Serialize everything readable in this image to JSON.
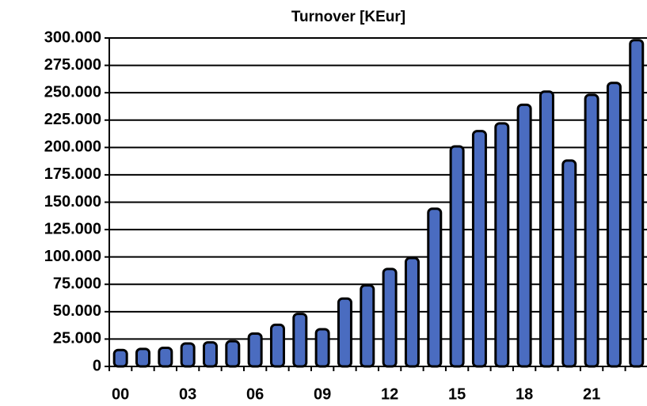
{
  "chart_data": {
    "type": "bar",
    "title": "Turnover [KEur]",
    "categories": [
      "00",
      null,
      null,
      "03",
      null,
      null,
      "06",
      null,
      null,
      "09",
      null,
      null,
      "12",
      null,
      null,
      "15",
      null,
      null,
      "18",
      null,
      null,
      "21",
      null,
      null
    ],
    "values": [
      15000,
      16000,
      17000,
      21000,
      22000,
      23000,
      30000,
      38000,
      48000,
      34000,
      62000,
      74000,
      89000,
      99000,
      144000,
      201000,
      215000,
      222000,
      239000,
      251000,
      188000,
      248000,
      259000,
      298000
    ],
    "color": "#4a6cc0",
    "ylim": [
      0,
      300000
    ],
    "yticks": [
      {
        "value": 0,
        "label": "0"
      },
      {
        "value": 25000,
        "label": "25.000"
      },
      {
        "value": 50000,
        "label": "50.000"
      },
      {
        "value": 75000,
        "label": "75.000"
      },
      {
        "value": 100000,
        "label": "100.000"
      },
      {
        "value": 125000,
        "label": "125.000"
      },
      {
        "value": 150000,
        "label": "150.000"
      },
      {
        "value": 175000,
        "label": "175.000"
      },
      {
        "value": 200000,
        "label": "200.000"
      },
      {
        "value": 225000,
        "label": "225.000"
      },
      {
        "value": 250000,
        "label": "250.000"
      },
      {
        "value": 275000,
        "label": "275.000"
      },
      {
        "value": 300000,
        "label": "300.000"
      }
    ],
    "grid": true
  }
}
